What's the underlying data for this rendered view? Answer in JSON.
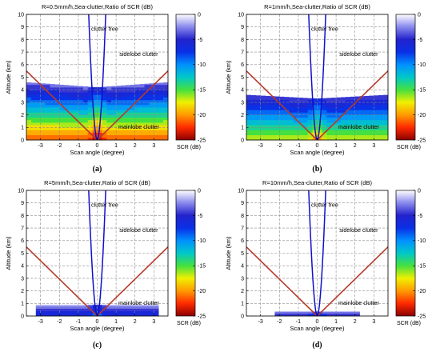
{
  "colormap": {
    "label": "SCR (dB)",
    "range": [
      -25,
      0
    ],
    "ticks": [
      "0",
      "-5",
      "-10",
      "-15",
      "-20",
      "-25"
    ],
    "stops": [
      "#8b0000",
      "#ff2a00",
      "#ff9a00",
      "#f0f000",
      "#44e040",
      "#00c8c8",
      "#0090ff",
      "#0a30e6",
      "#2222cc",
      "#8888ee",
      "#ffffff"
    ]
  },
  "chart_data": [
    {
      "type": "heatmap",
      "panel_label": "(a)",
      "title": "R=0.5mm/h,Sea-clutter,Ratio of SCR (dB)",
      "xlabel": "Scan angle (degree)",
      "ylabel": "Altitude (km)",
      "xlim": [
        -3.75,
        3.75
      ],
      "ylim": [
        0,
        10
      ],
      "xticks": [
        "-3",
        "-2",
        "-1",
        "0",
        "1",
        "2",
        "3"
      ],
      "yticks": [
        "0",
        "1",
        "2",
        "3",
        "4",
        "5",
        "6",
        "7",
        "8",
        "9",
        "10"
      ],
      "grid": true,
      "annotations": [
        {
          "text": "clutter free",
          "x": 0.4,
          "y": 8.7
        },
        {
          "text": "sidelobe clutter",
          "x": 2.2,
          "y": 6.7
        },
        {
          "text": "mainlobe clutter",
          "x": 2.2,
          "y": 0.9
        }
      ],
      "clutter_region": {
        "top_altitude_km": 4.2,
        "edge_altitude_km": 4.6,
        "surface_scr_db": -22,
        "top_scr_db": -3
      },
      "boundary_lines": {
        "x_at_edge": 3.75,
        "altitude_at_edge_km": 5.5
      },
      "blue_curves": {
        "x_at_10km": 0.45
      }
    },
    {
      "type": "heatmap",
      "panel_label": "(b)",
      "title": "R=1mm/h,Sea-clutter,Ratio of SCR (dB)",
      "xlabel": "Scan angle (degree)",
      "ylabel": "Altitude (km)",
      "xlim": [
        -3.75,
        3.75
      ],
      "ylim": [
        0,
        10
      ],
      "xticks": [
        "-3",
        "-2",
        "-1",
        "0",
        "1",
        "2",
        "3"
      ],
      "yticks": [
        "0",
        "1",
        "2",
        "3",
        "4",
        "5",
        "6",
        "7",
        "8",
        "9",
        "10"
      ],
      "grid": true,
      "annotations": [
        {
          "text": "clutter free",
          "x": 0.4,
          "y": 8.7
        },
        {
          "text": "sidelobe clutter",
          "x": 2.2,
          "y": 6.7
        },
        {
          "text": "mainlobe clutter",
          "x": 2.2,
          "y": 0.9
        }
      ],
      "clutter_region": {
        "top_altitude_km": 3.3,
        "edge_altitude_km": 3.6,
        "surface_scr_db": -17,
        "top_scr_db": -4
      },
      "boundary_lines": {
        "x_at_edge": 3.75,
        "altitude_at_edge_km": 5.5
      },
      "blue_curves": {
        "x_at_10km": 0.45
      }
    },
    {
      "type": "heatmap",
      "panel_label": "(c)",
      "title": "R=5mm/h,Sea-clutter,Ratio of SCR (dB)",
      "xlabel": "Scan angle (degree)",
      "ylabel": "Altitude (km)",
      "xlim": [
        -3.75,
        3.75
      ],
      "ylim": [
        0,
        10
      ],
      "xticks": [
        "-3",
        "-2",
        "-1",
        "0",
        "1",
        "2",
        "3"
      ],
      "yticks": [
        "0",
        "1",
        "2",
        "3",
        "4",
        "5",
        "6",
        "7",
        "8",
        "9",
        "10"
      ],
      "grid": true,
      "annotations": [
        {
          "text": "clutter free",
          "x": 0.4,
          "y": 8.7
        },
        {
          "text": "sidelobe clutter",
          "x": 2.2,
          "y": 6.7
        },
        {
          "text": "mainlobe clutter",
          "x": 2.2,
          "y": 0.9
        }
      ],
      "clutter_region": {
        "top_altitude_km": 0.9,
        "edge_altitude_km": 0.9,
        "surface_scr_db": -7,
        "top_scr_db": -2,
        "x_extent": 3.2
      },
      "boundary_lines": {
        "x_at_edge": 3.75,
        "altitude_at_edge_km": 5.5
      },
      "blue_curves": {
        "x_at_10km": 0.45
      }
    },
    {
      "type": "heatmap",
      "panel_label": "(d)",
      "title": "R=10mm/h,Sea-clutter,Ratio of SCR (dB)",
      "xlabel": "Scan angle (degree)",
      "ylabel": "Altitude (km)",
      "xlim": [
        -3.75,
        3.75
      ],
      "ylim": [
        0,
        10
      ],
      "xticks": [
        "-3",
        "-2",
        "-1",
        "0",
        "1",
        "2",
        "3"
      ],
      "yticks": [
        "0",
        "1",
        "2",
        "3",
        "4",
        "5",
        "6",
        "7",
        "8",
        "9",
        "10"
      ],
      "grid": true,
      "annotations": [
        {
          "text": "clutter free",
          "x": 0.4,
          "y": 8.7
        },
        {
          "text": "sidelobe clutter",
          "x": 2.2,
          "y": 6.7
        },
        {
          "text": "mainlobe clutter",
          "x": 2.2,
          "y": 0.9
        }
      ],
      "clutter_region": {
        "top_altitude_km": 0.35,
        "edge_altitude_km": 0.35,
        "surface_scr_db": -6,
        "top_scr_db": -2,
        "x_extent": 2.3
      },
      "boundary_lines": {
        "x_at_edge": 3.75,
        "altitude_at_edge_km": 5.5
      },
      "blue_curves": {
        "x_at_10km": 0.45
      }
    }
  ]
}
